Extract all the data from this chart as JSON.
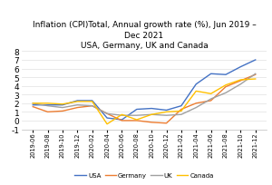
{
  "title_line1": "Inflation (CPI)Total, Annual growth rate (%), Jun 2019 –",
  "title_line2": "Dec 2021",
  "title_line3": "USA, Germany, UK and Canada",
  "title_fontsize": 6.5,
  "xlabel_fontsize": 4.8,
  "ylabel_fontsize": 6.5,
  "ylim": [
    -1,
    8
  ],
  "yticks": [
    -1,
    0,
    1,
    2,
    3,
    4,
    5,
    6,
    7,
    8
  ],
  "labels": [
    "2019-06",
    "2019-08",
    "2019-10",
    "2019-12",
    "2020-02",
    "2020-04",
    "2020-06",
    "2020-08",
    "2020-10",
    "2020-12",
    "2021-02",
    "2021-04",
    "2021-06",
    "2021-08",
    "2021-10",
    "2021-12"
  ],
  "USA": [
    1.8,
    1.8,
    1.8,
    2.3,
    2.3,
    0.3,
    0.1,
    1.3,
    1.4,
    1.2,
    1.7,
    4.2,
    5.4,
    5.3,
    6.2,
    7.0
  ],
  "Germany": [
    1.6,
    1.0,
    1.1,
    1.5,
    1.7,
    0.8,
    0.0,
    0.0,
    -0.2,
    -0.3,
    1.3,
    2.0,
    2.3,
    3.9,
    4.6,
    5.3
  ],
  "UK": [
    2.0,
    1.7,
    1.5,
    1.8,
    1.7,
    0.8,
    0.6,
    0.6,
    0.7,
    0.6,
    0.7,
    1.5,
    2.5,
    3.2,
    4.2,
    5.4
  ],
  "Canada": [
    2.0,
    2.0,
    1.9,
    2.2,
    2.2,
    -0.4,
    0.7,
    0.1,
    0.7,
    1.0,
    1.1,
    3.4,
    3.1,
    4.1,
    4.7,
    4.8
  ],
  "color_USA": "#4472C4",
  "color_Germany": "#ED7D31",
  "color_UK": "#A0A0A0",
  "color_Canada": "#FFC000",
  "legend_fontsize": 5.0,
  "grid_color": "#E0E0E0",
  "background_color": "#FFFFFF"
}
